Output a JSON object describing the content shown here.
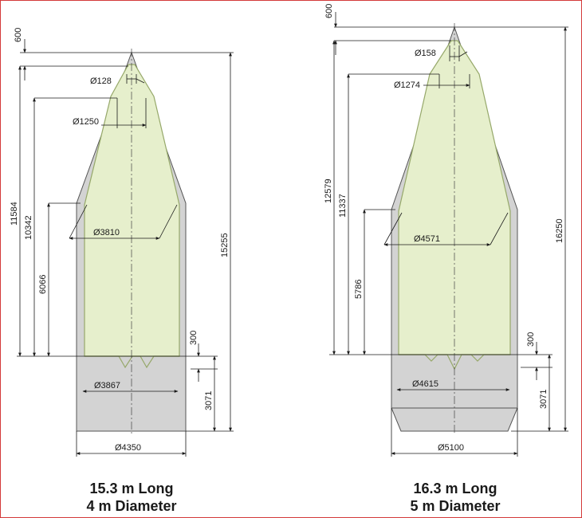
{
  "colors": {
    "shell": "#d3d3d3",
    "envelope": "#e6efcc",
    "envelope_line": "#96a86a",
    "dim_line": "#1a1a1a",
    "border": "#d43a3a"
  },
  "fairing_4m": {
    "caption_line1": "15.3 m Long",
    "caption_line2": "4 m Diameter",
    "dims": {
      "d_128": "Ø128",
      "d_1250": "Ø1250",
      "d_3810": "Ø3810",
      "d_3867": "Ø3867",
      "d_4350": "Ø4350",
      "h_600": "600",
      "h_11584": "11584",
      "h_10342": "10342",
      "h_6066": "6066",
      "h_300": "300",
      "h_3071": "3071",
      "h_15255": "15255"
    }
  },
  "fairing_5m": {
    "caption_line1": "16.3 m Long",
    "caption_line2": "5 m Diameter",
    "dims": {
      "d_158": "Ø158",
      "d_1274": "Ø1274",
      "d_4571": "Ø4571",
      "d_4615": "Ø4615",
      "d_5100": "Ø5100",
      "h_600": "600",
      "h_12579": "12579",
      "h_11337": "11337",
      "h_5786": "5786",
      "h_300": "300",
      "h_3071": "3071",
      "h_16250": "16250"
    }
  }
}
